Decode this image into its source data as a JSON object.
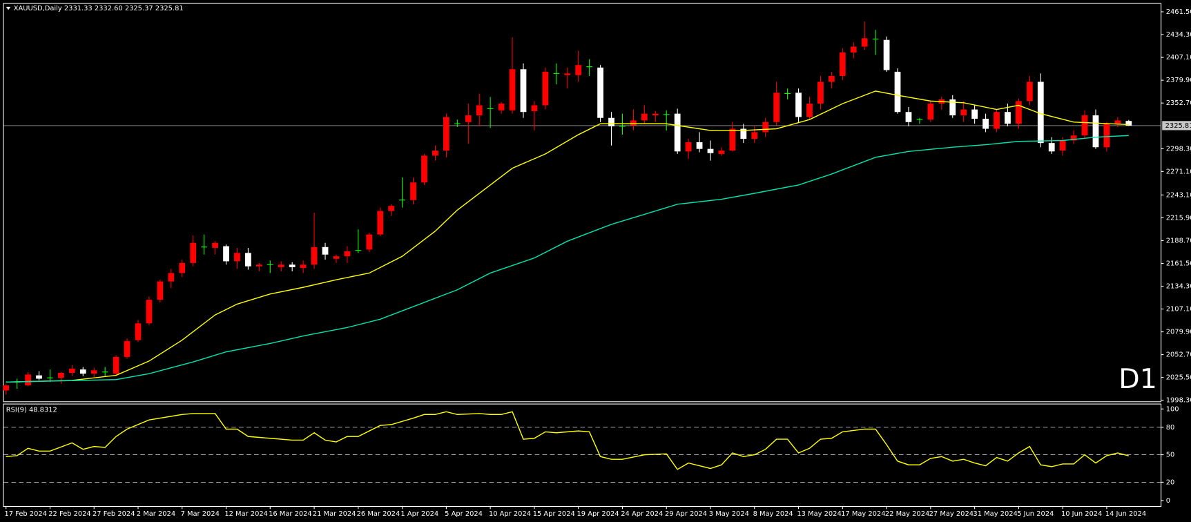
{
  "chart_data": [
    {
      "type": "candlestick",
      "title": "XAUUSD,Daily  2331.33 2332.60 2325.37 2325.81",
      "annotation": "D1",
      "annotation_color": "#ff0000",
      "up_color": "#ff0000",
      "down_color": "#ffffff",
      "doji_color": "#00ff00",
      "xlim": [
        -0.2,
        104.9
      ],
      "ylim": [
        1997,
        2471
      ],
      "yticks": [
        {
          "value": 2461.5,
          "label": "2461.50"
        },
        {
          "value": 2434.3,
          "label": "2434.30"
        },
        {
          "value": 2407.1,
          "label": "2407.10"
        },
        {
          "value": 2379.9,
          "label": "2379.90"
        },
        {
          "value": 2352.7,
          "label": "2352.70"
        },
        {
          "value": 2298.3,
          "label": "2298.30"
        },
        {
          "value": 2271.1,
          "label": "2271.10"
        },
        {
          "value": 2243.1,
          "label": "2243.10"
        },
        {
          "value": 2215.9,
          "label": "2215.90"
        },
        {
          "value": 2188.7,
          "label": "2188.70"
        },
        {
          "value": 2161.5,
          "label": "2161.50"
        },
        {
          "value": 2134.3,
          "label": "2134.30"
        },
        {
          "value": 2107.1,
          "label": "2107.10"
        },
        {
          "value": 2079.9,
          "label": "2079.90"
        },
        {
          "value": 2052.7,
          "label": "2052.70"
        },
        {
          "value": 2025.5,
          "label": "2025.50"
        },
        {
          "value": 1998.3,
          "label": "1998.30"
        }
      ],
      "current_price": {
        "value": 2325.81,
        "label": "2325.81"
      },
      "open": [
        2010,
        2020,
        2016,
        2028,
        2025,
        2025,
        2031,
        2035,
        2030,
        2032,
        2030,
        2050,
        2070,
        2090,
        2118,
        2140,
        2150,
        2162,
        2181,
        2180,
        2182,
        2164,
        2174,
        2158,
        2160,
        2157,
        2160,
        2156,
        2160,
        2181,
        2167,
        2170,
        2177,
        2178,
        2196,
        2224,
        2237,
        2237,
        2258,
        2290,
        2296,
        2328,
        2330,
        2338,
        2346,
        2344,
        2344,
        2393,
        2343,
        2350,
        2388,
        2386,
        2386,
        2396,
        2395,
        2335,
        2325,
        2326,
        2332,
        2338,
        2339,
        2340,
        2295,
        2306,
        2298,
        2292,
        2296,
        2322,
        2310,
        2318,
        2330,
        2364,
        2365,
        2336,
        2352,
        2378,
        2385,
        2413,
        2420,
        2429,
        2428,
        2390,
        2342,
        2333,
        2333,
        2352,
        2357,
        2338,
        2345,
        2334,
        2322,
        2342,
        2328,
        2355,
        2378,
        2305,
        2296,
        2308,
        2314,
        2338,
        2300,
        2328,
        2331.33
      ],
      "high": [
        2018,
        2024,
        2032,
        2033,
        2035,
        2032,
        2040,
        2038,
        2037,
        2038,
        2052,
        2072,
        2094,
        2122,
        2142,
        2155,
        2166,
        2195,
        2196,
        2188,
        2184,
        2180,
        2180,
        2162,
        2165,
        2164,
        2163,
        2165,
        2222,
        2186,
        2172,
        2182,
        2202,
        2198,
        2228,
        2232,
        2264,
        2264,
        2292,
        2302,
        2340,
        2333,
        2352,
        2364,
        2360,
        2354,
        2431,
        2400,
        2355,
        2395,
        2400,
        2395,
        2415,
        2405,
        2398,
        2342,
        2340,
        2345,
        2350,
        2343,
        2344,
        2346,
        2310,
        2318,
        2308,
        2300,
        2330,
        2328,
        2325,
        2335,
        2378,
        2370,
        2370,
        2360,
        2385,
        2390,
        2418,
        2425,
        2450,
        2440,
        2432,
        2394,
        2348,
        2335,
        2356,
        2360,
        2362,
        2355,
        2350,
        2340,
        2345,
        2352,
        2358,
        2385,
        2388,
        2312,
        2312,
        2320,
        2344,
        2345,
        2330,
        2336,
        2332.6
      ],
      "low": [
        2005,
        2012,
        2015,
        2022,
        2020,
        2018,
        2027,
        2027,
        2026,
        2027,
        2028,
        2048,
        2068,
        2088,
        2115,
        2132,
        2145,
        2158,
        2172,
        2172,
        2160,
        2155,
        2154,
        2152,
        2150,
        2152,
        2152,
        2150,
        2155,
        2166,
        2162,
        2162,
        2174,
        2175,
        2194,
        2218,
        2228,
        2232,
        2255,
        2284,
        2288,
        2324,
        2304,
        2325,
        2323,
        2340,
        2340,
        2335,
        2320,
        2345,
        2375,
        2370,
        2378,
        2385,
        2330,
        2302,
        2315,
        2320,
        2328,
        2330,
        2320,
        2292,
        2286,
        2294,
        2284,
        2290,
        2295,
        2305,
        2305,
        2312,
        2326,
        2357,
        2330,
        2334,
        2345,
        2370,
        2380,
        2406,
        2416,
        2410,
        2390,
        2340,
        2325,
        2328,
        2330,
        2345,
        2335,
        2330,
        2328,
        2318,
        2318,
        2325,
        2322,
        2350,
        2300,
        2292,
        2290,
        2304,
        2310,
        2298,
        2295,
        2324,
        2325.37
      ],
      "close": [
        2016,
        2020,
        2029,
        2024,
        2025,
        2031,
        2036,
        2030,
        2034,
        2032,
        2050,
        2069,
        2090,
        2118,
        2140,
        2150,
        2162,
        2186,
        2181,
        2186,
        2164,
        2174,
        2158,
        2160,
        2160,
        2160,
        2157,
        2160,
        2181,
        2172,
        2170,
        2176,
        2177,
        2196,
        2224,
        2230,
        2237,
        2258,
        2290,
        2296,
        2336,
        2328,
        2338,
        2350,
        2346,
        2352,
        2393,
        2342,
        2350,
        2390,
        2388,
        2388,
        2398,
        2396,
        2335,
        2325,
        2325,
        2332,
        2340,
        2340,
        2339,
        2295,
        2306,
        2298,
        2293,
        2296,
        2322,
        2310,
        2318,
        2330,
        2365,
        2364,
        2336,
        2352,
        2378,
        2385,
        2413,
        2420,
        2430,
        2429,
        2392,
        2342,
        2330,
        2333,
        2352,
        2357,
        2338,
        2345,
        2334,
        2322,
        2342,
        2328,
        2355,
        2378,
        2305,
        2295,
        2308,
        2314,
        2338,
        2300,
        2328,
        2332,
        2325.81
      ],
      "lines": [
        {
          "color": "#ffff00",
          "x": [
            0,
            6,
            10,
            13,
            16,
            19,
            21,
            24,
            27,
            30,
            33,
            36,
            39,
            41,
            44,
            46,
            49,
            52,
            54,
            60,
            64,
            67,
            70,
            73,
            76,
            79,
            81,
            84,
            87,
            90,
            92,
            94,
            97,
            102
          ],
          "values": [
            2020,
            2022,
            2028,
            2045,
            2070,
            2100,
            2113,
            2125,
            2133,
            2142,
            2150,
            2170,
            2200,
            2225,
            2255,
            2275,
            2292,
            2315,
            2328,
            2328,
            2320,
            2320,
            2322,
            2333,
            2352,
            2367,
            2362,
            2355,
            2353,
            2345,
            2350,
            2340,
            2330,
            2327
          ]
        },
        {
          "color": "#00e5b0",
          "x": [
            0,
            10,
            13,
            17,
            20,
            24,
            27,
            31,
            34,
            37,
            41,
            44,
            48,
            51,
            55,
            58,
            61,
            65,
            68,
            72,
            75,
            79,
            82,
            86,
            89,
            92,
            96,
            99,
            102
          ],
          "values": [
            2020,
            2023,
            2030,
            2044,
            2056,
            2066,
            2075,
            2085,
            2095,
            2110,
            2130,
            2150,
            2168,
            2188,
            2208,
            2220,
            2232,
            2238,
            2245,
            2255,
            2268,
            2288,
            2295,
            2300,
            2303,
            2307,
            2308,
            2312,
            2314
          ]
        }
      ]
    },
    {
      "type": "line",
      "title": "RSI(9) 48.8312",
      "color": "#ffff00",
      "xlim": [
        -0.2,
        104.9
      ],
      "ylim": [
        -6,
        105
      ],
      "yticks": [
        0,
        20,
        50,
        80,
        100
      ],
      "levels": [
        20,
        50,
        80
      ],
      "xticks": [
        {
          "value": 0,
          "label": "17 Feb 2024"
        },
        {
          "value": 4,
          "label": "22 Feb 2024"
        },
        {
          "value": 8,
          "label": "27 Feb 2024"
        },
        {
          "value": 12,
          "label": "2 Mar 2024"
        },
        {
          "value": 16,
          "label": "7 Mar 2024"
        },
        {
          "value": 20,
          "label": "12 Mar 2024"
        },
        {
          "value": 24,
          "label": "16 Mar 2024"
        },
        {
          "value": 28,
          "label": "21 Mar 2024"
        },
        {
          "value": 32,
          "label": "26 Mar 2024"
        },
        {
          "value": 36,
          "label": "1 Apr 2024"
        },
        {
          "value": 40,
          "label": "5 Apr 2024"
        },
        {
          "value": 44,
          "label": "10 Apr 2024"
        },
        {
          "value": 48,
          "label": "15 Apr 2024"
        },
        {
          "value": 52,
          "label": "19 Apr 2024"
        },
        {
          "value": 56,
          "label": "24 Apr 2024"
        },
        {
          "value": 60,
          "label": "29 Apr 2024"
        },
        {
          "value": 64,
          "label": "3 May 2024"
        },
        {
          "value": 68,
          "label": "8 May 2024"
        },
        {
          "value": 72,
          "label": "13 May 2024"
        },
        {
          "value": 76,
          "label": "17 May 2024"
        },
        {
          "value": 80,
          "label": "22 May 2024"
        },
        {
          "value": 84,
          "label": "27 May 2024"
        },
        {
          "value": 88,
          "label": "31 May 2024"
        },
        {
          "value": 92,
          "label": "5 Jun 2024"
        },
        {
          "value": 96,
          "label": "10 Jun 2024"
        },
        {
          "value": 100,
          "label": "14 Jun 2024"
        }
      ],
      "x": [
        0,
        1,
        2,
        3,
        4,
        6,
        7,
        8,
        9,
        10,
        11,
        13,
        16,
        17,
        19,
        20,
        21,
        22,
        24,
        26,
        27,
        28,
        29,
        30,
        31,
        32,
        34,
        35,
        37,
        38,
        39,
        40,
        41,
        43,
        44,
        45,
        46,
        47,
        48,
        49,
        50,
        52,
        53,
        54,
        55,
        56,
        58,
        60,
        61,
        62,
        64,
        65,
        66,
        67,
        68,
        69,
        70,
        71,
        72,
        73,
        74,
        75,
        76,
        78,
        79,
        80,
        81,
        82,
        83,
        84,
        85,
        86,
        87,
        88,
        89,
        90,
        91,
        92,
        93,
        94,
        95,
        96,
        97,
        98,
        99,
        100,
        101,
        102
      ],
      "values": [
        48,
        49,
        57,
        54,
        54,
        63,
        56,
        59,
        58,
        70,
        78,
        88,
        94,
        95,
        95,
        78,
        78,
        70,
        68,
        66,
        66,
        74,
        66,
        64,
        70,
        70,
        82,
        83,
        90,
        94,
        94,
        97,
        94,
        95,
        94,
        94,
        97,
        67,
        68,
        75,
        74,
        76,
        75,
        48,
        45,
        45,
        50,
        51,
        34,
        41,
        35,
        39,
        52,
        48,
        50,
        56,
        67,
        67,
        52,
        57,
        67,
        68,
        75,
        78,
        78,
        61,
        43,
        39,
        39,
        46,
        48,
        43,
        45,
        41,
        38,
        47,
        43,
        52,
        59,
        39,
        37,
        40,
        40,
        50,
        41,
        49,
        52,
        48.8312
      ]
    }
  ]
}
